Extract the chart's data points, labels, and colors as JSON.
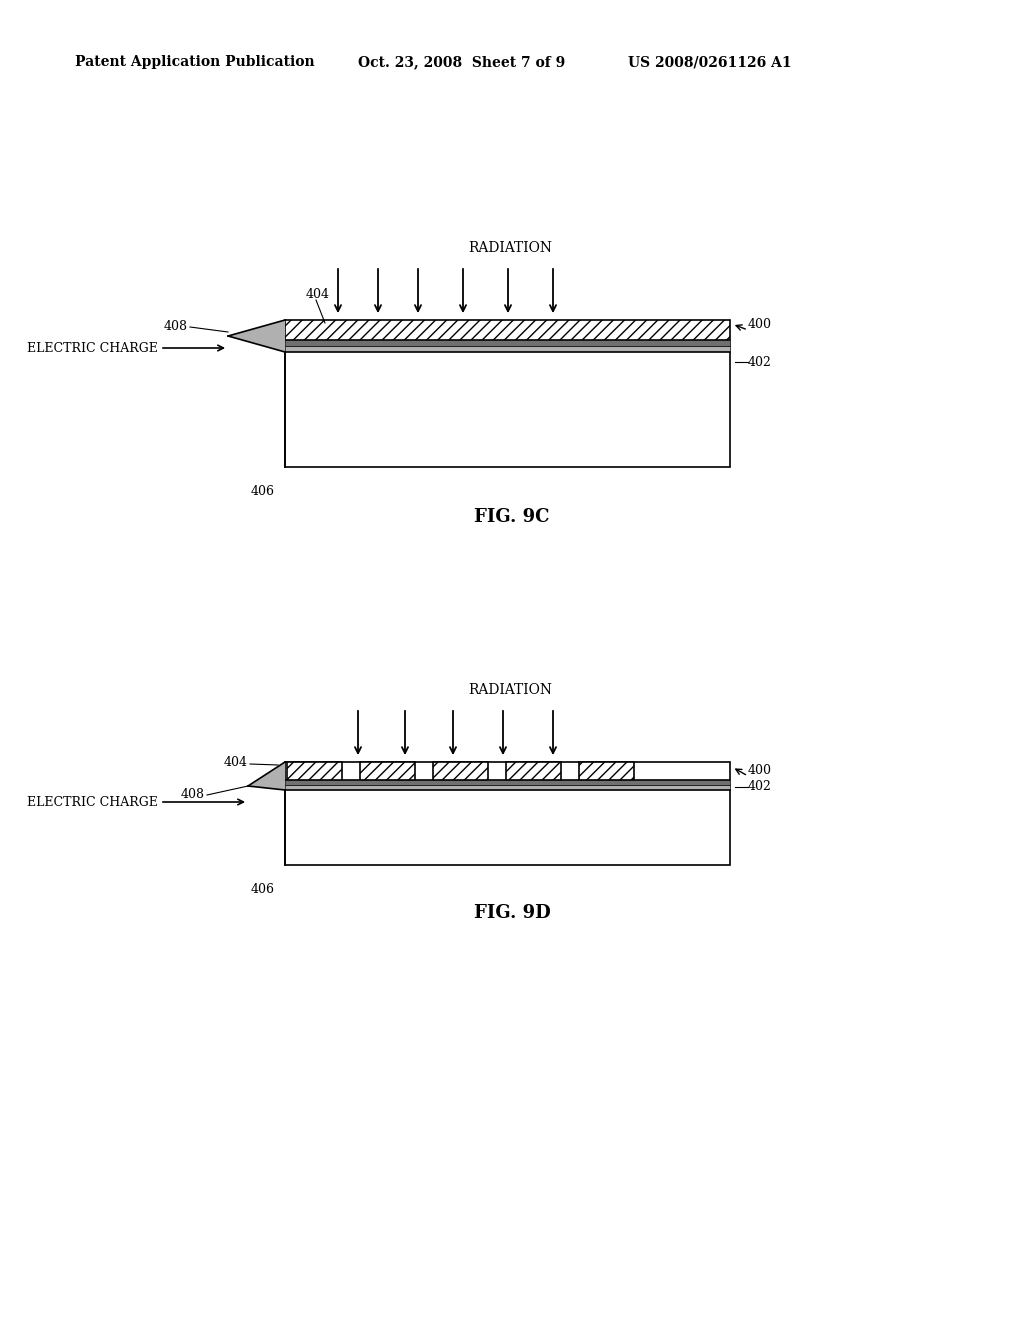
{
  "bg_color": "#ffffff",
  "text_color": "#000000",
  "header_left": "Patent Application Publication",
  "header_mid": "Oct. 23, 2008  Sheet 7 of 9",
  "header_right": "US 2008/0261126 A1",
  "fig1_label": "FIG. 9C",
  "fig2_label": "FIG. 9D",
  "line_color": "#000000",
  "light_gray": "#b0b0b0",
  "dark_gray": "#707070",
  "mid_gray": "#909090"
}
